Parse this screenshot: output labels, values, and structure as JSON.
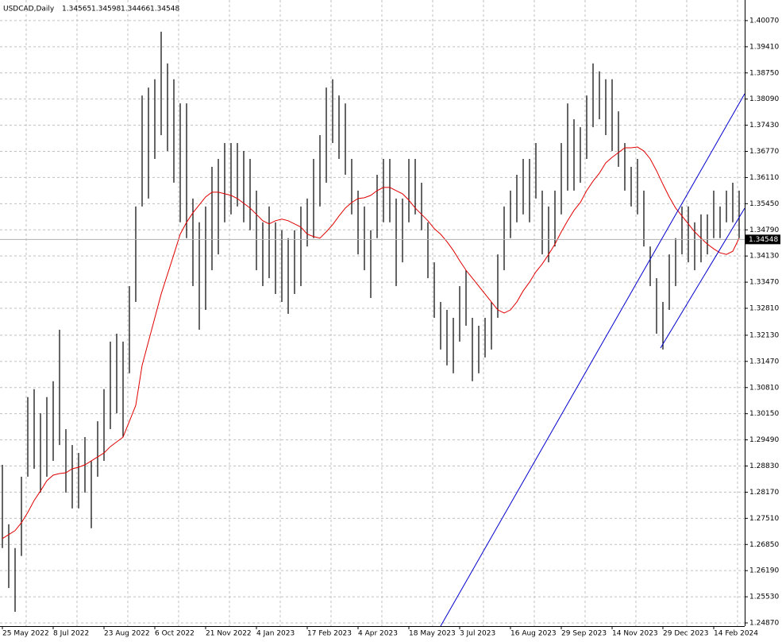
{
  "chart_data": {
    "type": "ohlc",
    "symbol": "USDCAD,Daily",
    "ohlc": [
      1.34565,
      1.34598,
      1.34466,
      1.34548
    ],
    "bar_color": "#000000",
    "categories": [
      "25 May 2022",
      null,
      null,
      null,
      null,
      null,
      null,
      null,
      "8 Jul 2022",
      null,
      null,
      null,
      null,
      null,
      null,
      null,
      "23 Aug 2022",
      null,
      null,
      null,
      null,
      null,
      null,
      null,
      "6 Oct 2022",
      null,
      null,
      null,
      null,
      null,
      null,
      null,
      "21 Nov 2022",
      null,
      null,
      null,
      null,
      null,
      null,
      null,
      "4 Jan 2023",
      null,
      null,
      null,
      null,
      null,
      null,
      null,
      "17 Feb 2023",
      null,
      null,
      null,
      null,
      null,
      null,
      null,
      "4 Apr 2023",
      null,
      null,
      null,
      null,
      null,
      null,
      null,
      "18 May 2023",
      null,
      null,
      null,
      null,
      null,
      null,
      null,
      "3 Jul 2023",
      null,
      null,
      null,
      null,
      null,
      null,
      null,
      "16 Aug 2023",
      null,
      null,
      null,
      null,
      null,
      null,
      null,
      "29 Sep 2023",
      null,
      null,
      null,
      null,
      null,
      null,
      null,
      "14 Nov 2023",
      null,
      null,
      null,
      null,
      null,
      null,
      null,
      "29 Dec 2023",
      null,
      null,
      null,
      null,
      null,
      null,
      null,
      "14 Feb 2024",
      null,
      null,
      null,
      null
    ],
    "high": [
      1.2886,
      1.2736,
      1.2676,
      1.2856,
      1.3057,
      1.3077,
      1.3016,
      1.3057,
      1.3097,
      1.3227,
      1.2976,
      1.2936,
      1.2916,
      1.2956,
      1.2896,
      1.2996,
      1.3077,
      1.3197,
      1.3217,
      1.3197,
      1.3337,
      1.3538,
      1.3818,
      1.3838,
      1.3859,
      1.3979,
      1.3899,
      1.3859,
      1.3798,
      1.3798,
      1.3558,
      1.3498,
      1.3538,
      1.3638,
      1.3658,
      1.3698,
      1.3698,
      1.3698,
      1.3678,
      1.3658,
      1.3578,
      1.3498,
      1.3538,
      1.3498,
      1.3478,
      1.3458,
      1.3478,
      1.3538,
      1.3558,
      1.3658,
      1.3718,
      1.3838,
      1.3859,
      1.3818,
      1.3798,
      1.3658,
      1.3578,
      1.3538,
      1.3478,
      1.3618,
      1.3658,
      1.3658,
      1.3558,
      1.3558,
      1.3658,
      1.3658,
      1.3598,
      1.3498,
      1.3397,
      1.3297,
      1.3277,
      1.3257,
      1.3337,
      1.3377,
      1.3257,
      1.3237,
      1.3257,
      1.3297,
      1.3417,
      1.3538,
      1.3578,
      1.3618,
      1.3658,
      1.3658,
      1.3698,
      1.3578,
      1.3538,
      1.3578,
      1.3698,
      1.3798,
      1.3758,
      1.3738,
      1.3818,
      1.3899,
      1.3879,
      1.3859,
      1.3859,
      1.3778,
      1.3698,
      1.3638,
      1.3658,
      1.3578,
      1.3437,
      1.3357,
      1.3297,
      1.3417,
      1.3458,
      1.3538,
      1.3538,
      1.3498,
      1.3518,
      1.3518,
      1.3578,
      1.3538,
      1.3578,
      1.3598,
      1.3578
    ],
    "low": [
      1.2676,
      1.2575,
      1.2515,
      1.2656,
      1.2856,
      1.2876,
      1.2816,
      1.2856,
      1.2896,
      1.2936,
      1.2816,
      1.2776,
      1.2776,
      1.2816,
      1.2726,
      1.2856,
      1.2896,
      1.2976,
      1.3016,
      1.2956,
      1.3117,
      1.3297,
      1.3538,
      1.3558,
      1.3658,
      1.3718,
      1.3678,
      1.3598,
      1.3498,
      1.3458,
      1.3337,
      1.3227,
      1.3277,
      1.3377,
      1.3417,
      1.3498,
      1.3518,
      1.3538,
      1.3498,
      1.3478,
      1.3377,
      1.3337,
      1.3357,
      1.3317,
      1.3297,
      1.3267,
      1.3317,
      1.3337,
      1.3437,
      1.3458,
      1.3538,
      1.3598,
      1.3698,
      1.3658,
      1.3618,
      1.3518,
      1.3417,
      1.3377,
      1.3307,
      1.3458,
      1.3498,
      1.3498,
      1.3337,
      1.3397,
      1.3498,
      1.3518,
      1.3478,
      1.3357,
      1.3257,
      1.3177,
      1.3137,
      1.3117,
      1.3197,
      1.3237,
      1.3097,
      1.3117,
      1.3157,
      1.3177,
      1.3257,
      1.3377,
      1.3458,
      1.3498,
      1.3518,
      1.3498,
      1.3558,
      1.3417,
      1.3397,
      1.3437,
      1.3518,
      1.3578,
      1.3578,
      1.3598,
      1.3658,
      1.3738,
      1.3758,
      1.3718,
      1.3678,
      1.3638,
      1.3578,
      1.3538,
      1.3518,
      1.3437,
      1.3337,
      1.3217,
      1.3177,
      1.3277,
      1.3337,
      1.3417,
      1.3397,
      1.3377,
      1.3397,
      1.3417,
      1.3458,
      1.3458,
      1.3498,
      1.3498,
      1.3458
    ],
    "ma": {
      "color": "#e00000",
      "values": [
        1.27,
        1.271,
        1.272,
        1.274,
        1.2766,
        1.2796,
        1.282,
        1.2846,
        1.286,
        1.2864,
        1.2866,
        1.2876,
        1.288,
        1.2886,
        1.2896,
        1.2906,
        1.2916,
        1.2932,
        1.2944,
        1.2956,
        1.2996,
        1.3036,
        1.3137,
        1.3197,
        1.3257,
        1.3317,
        1.3367,
        1.3417,
        1.3468,
        1.3498,
        1.3522,
        1.3542,
        1.3562,
        1.3574,
        1.3574,
        1.357,
        1.3566,
        1.3558,
        1.3546,
        1.3534,
        1.3518,
        1.3502,
        1.3494,
        1.3502,
        1.3506,
        1.3502,
        1.3494,
        1.3486,
        1.3468,
        1.3462,
        1.3458,
        1.3474,
        1.3492,
        1.3514,
        1.3534,
        1.3548,
        1.3558,
        1.356,
        1.3566,
        1.3578,
        1.3586,
        1.3586,
        1.3578,
        1.357,
        1.3554,
        1.3534,
        1.3518,
        1.3502,
        1.3482,
        1.3468,
        1.3449,
        1.3427,
        1.3401,
        1.3377,
        1.3357,
        1.3337,
        1.3317,
        1.3297,
        1.3277,
        1.3269,
        1.3277,
        1.3297,
        1.3325,
        1.3347,
        1.3373,
        1.3393,
        1.3417,
        1.3443,
        1.3474,
        1.3502,
        1.3528,
        1.3548,
        1.3578,
        1.3602,
        1.3622,
        1.3648,
        1.3662,
        1.3674,
        1.3686,
        1.3686,
        1.3688,
        1.3678,
        1.3658,
        1.3628,
        1.3594,
        1.3562,
        1.3534,
        1.3514,
        1.3494,
        1.3474,
        1.3458,
        1.3443,
        1.3431,
        1.3421,
        1.3417,
        1.3425,
        1.3458
      ]
    },
    "ylim": [
      1.2479,
      1.4059
    ],
    "yticks": [
      {
        "value": 1.4007,
        "label": "1.40070"
      },
      {
        "value": 1.3941,
        "label": "1.39410"
      },
      {
        "value": 1.3875,
        "label": "1.38750"
      },
      {
        "value": 1.3809,
        "label": "1.38090"
      },
      {
        "value": 1.3743,
        "label": "1.37430"
      },
      {
        "value": 1.3677,
        "label": "1.36770"
      },
      {
        "value": 1.3611,
        "label": "1.36110"
      },
      {
        "value": 1.3545,
        "label": "1.35450"
      },
      {
        "value": 1.3479,
        "label": "1.34790"
      },
      {
        "value": 1.3413,
        "label": "1.34130"
      },
      {
        "value": 1.3347,
        "label": "1.33470"
      },
      {
        "value": 1.3281,
        "label": "1.32810"
      },
      {
        "value": 1.3213,
        "label": "1.32130"
      },
      {
        "value": 1.3147,
        "label": "1.31470"
      },
      {
        "value": 1.3081,
        "label": "1.30810"
      },
      {
        "value": 1.3015,
        "label": "1.30150"
      },
      {
        "value": 1.2949,
        "label": "1.29490"
      },
      {
        "value": 1.2883,
        "label": "1.28830"
      },
      {
        "value": 1.2817,
        "label": "1.28170"
      },
      {
        "value": 1.2751,
        "label": "1.27510"
      },
      {
        "value": 1.2685,
        "label": "1.26850"
      },
      {
        "value": 1.2619,
        "label": "1.26190"
      },
      {
        "value": 1.2553,
        "label": "1.25530"
      },
      {
        "value": 1.2487,
        "label": "1.24870"
      }
    ],
    "grid": true
  }
}
